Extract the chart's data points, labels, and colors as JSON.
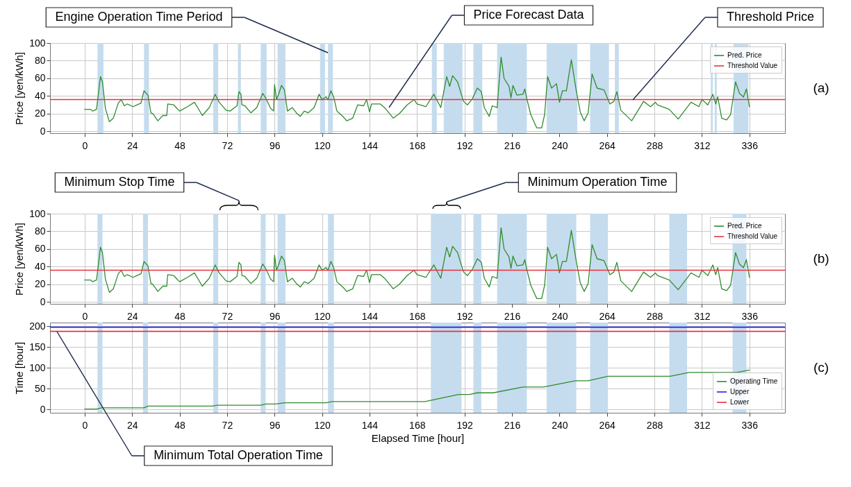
{
  "chart_data": [
    {
      "type": "line",
      "ylabel": "Price [yen/kWh]",
      "xlim": [
        -17.5,
        354
      ],
      "xticks": [
        0,
        24,
        48,
        72,
        96,
        120,
        144,
        168,
        192,
        216,
        240,
        264,
        288,
        312,
        336
      ],
      "ylim": [
        -2,
        100
      ],
      "yticks": [
        0,
        20,
        40,
        60,
        80,
        100
      ],
      "grid": true,
      "legend": "top right",
      "marker": "none",
      "line_style": "solid",
      "x": [
        0,
        3,
        4,
        6,
        8,
        9,
        10.5,
        12.5,
        14.5,
        17,
        18.5,
        20,
        21.5,
        24.5,
        26.5,
        28.5,
        30,
        32,
        33.5,
        34.5,
        37,
        39.5,
        41.5,
        42,
        45,
        48,
        52,
        55.5,
        59.5,
        63,
        66,
        68,
        71.5,
        73.5,
        77,
        78,
        79,
        79.5,
        81,
        84,
        87,
        90,
        91.5,
        94,
        95.5,
        96,
        97,
        98,
        99.5,
        101,
        102.5,
        105,
        107,
        109,
        111,
        113,
        116,
        118.5,
        120,
        122,
        123,
        124.5,
        126,
        127.5,
        129,
        130.5,
        132.5,
        135.5,
        138,
        141,
        142.5,
        144,
        145,
        149.5,
        152,
        156,
        159,
        163,
        166.5,
        168,
        171,
        172.5,
        176.5,
        180,
        183,
        184.5,
        186,
        188.5,
        191.5,
        193.5,
        196,
        198.5,
        200.5,
        202,
        204.5,
        206,
        208.5,
        210.5,
        212,
        214.5,
        215.5,
        216.5,
        218.5,
        221.5,
        222.5,
        223.5,
        225.5,
        228.5,
        231,
        232.5,
        234,
        236,
        238.5,
        240,
        241.5,
        243.5,
        246,
        248.5,
        250.5,
        252.5,
        254.5,
        256.5,
        259,
        262.5,
        265.5,
        267.5,
        269,
        271,
        276.5,
        282.5,
        286,
        288.5,
        289.5,
        295.5,
        300,
        306.5,
        310.5,
        312,
        315,
        317.5,
        319,
        320,
        322,
        324.5,
        326.5,
        329,
        331,
        333,
        334.5,
        336
      ],
      "series": [
        {
          "name": "Pred. Price",
          "color": "#2e8b2e",
          "values": [
            25,
            25,
            23,
            25,
            62,
            56,
            26,
            11,
            15,
            32,
            36,
            29,
            31,
            28,
            30,
            32,
            46,
            41,
            21,
            20,
            12,
            18,
            18,
            31,
            30,
            23,
            28,
            33,
            18,
            27,
            42,
            33,
            24,
            23,
            29,
            45,
            42,
            30,
            29,
            21,
            27,
            43,
            38,
            26,
            23,
            53,
            36,
            42,
            52,
            47,
            23,
            27,
            21,
            17,
            23,
            21,
            27,
            42,
            36,
            39,
            36,
            46,
            38,
            23,
            20,
            17,
            12,
            15,
            30,
            29,
            36,
            22,
            31,
            31,
            26,
            15,
            20,
            30,
            36,
            31,
            29,
            28,
            42,
            27,
            62,
            51,
            63,
            56,
            34,
            30,
            37,
            49,
            45,
            27,
            17,
            29,
            27,
            84,
            60,
            51,
            38,
            52,
            41,
            42,
            48,
            37,
            19,
            4,
            4,
            19,
            62,
            49,
            54,
            33,
            46,
            46,
            81,
            46,
            22,
            12,
            21,
            65,
            49,
            47,
            31,
            34,
            45,
            24,
            12,
            34,
            28,
            33,
            30,
            25,
            14,
            33,
            28,
            36,
            30,
            42,
            31,
            39,
            15,
            13,
            19,
            56,
            43,
            39,
            48,
            28
          ]
        }
      ],
      "ref_lines": [
        {
          "axis": "y",
          "value": 36,
          "label": "Threshold Value",
          "color": "#e8313c"
        }
      ],
      "bands": [
        {
          "axis": "x",
          "from": 6.5,
          "to": 9.5,
          "color": "#c5dcee"
        },
        {
          "axis": "x",
          "from": 30,
          "to": 32.5,
          "color": "#c5dcee"
        },
        {
          "axis": "x",
          "from": 65,
          "to": 67.5,
          "color": "#c5dcee"
        },
        {
          "axis": "x",
          "from": 77.5,
          "to": 79,
          "color": "#c5dcee"
        },
        {
          "axis": "x",
          "from": 89,
          "to": 92,
          "color": "#c5dcee"
        },
        {
          "axis": "x",
          "from": 97.5,
          "to": 101.5,
          "color": "#c5dcee"
        },
        {
          "axis": "x",
          "from": 119,
          "to": 121.5,
          "color": "#c5dcee"
        },
        {
          "axis": "x",
          "from": 123,
          "to": 125.5,
          "color": "#c5dcee"
        },
        {
          "axis": "x",
          "from": 175.5,
          "to": 178,
          "color": "#c5dcee"
        },
        {
          "axis": "x",
          "from": 181.5,
          "to": 191,
          "color": "#c5dcee"
        },
        {
          "axis": "x",
          "from": 196.5,
          "to": 201,
          "color": "#c5dcee"
        },
        {
          "axis": "x",
          "from": 208.5,
          "to": 223.5,
          "color": "#c5dcee"
        },
        {
          "axis": "x",
          "from": 233.5,
          "to": 249,
          "color": "#c5dcee"
        },
        {
          "axis": "x",
          "from": 255.5,
          "to": 265,
          "color": "#c5dcee"
        },
        {
          "axis": "x",
          "from": 268,
          "to": 270,
          "color": "#c5dcee"
        },
        {
          "axis": "x",
          "from": 316.5,
          "to": 317.5,
          "color": "#c5dcee"
        },
        {
          "axis": "x",
          "from": 318.5,
          "to": 319.5,
          "color": "#c5dcee"
        },
        {
          "axis": "x",
          "from": 328,
          "to": 335.5,
          "color": "#c5dcee"
        }
      ],
      "annotations": [
        "Engine Operation Time Period",
        "Price Forecast Data",
        "Threshold Price",
        "(a)"
      ]
    },
    {
      "type": "line",
      "ylabel": "Price [yen/kWh]",
      "xlim": [
        -17.5,
        354
      ],
      "xticks": [
        0,
        24,
        48,
        72,
        96,
        120,
        144,
        168,
        192,
        216,
        240,
        264,
        288,
        312,
        336
      ],
      "ylim": [
        -2,
        100
      ],
      "yticks": [
        0,
        20,
        40,
        60,
        80,
        100
      ],
      "grid": true,
      "legend": "top right",
      "marker": "none",
      "line_style": "solid",
      "x": [
        0,
        3,
        4,
        6,
        8,
        9,
        10.5,
        12.5,
        14.5,
        17,
        18.5,
        20,
        21.5,
        24.5,
        26.5,
        28.5,
        30,
        32,
        33.5,
        34.5,
        37,
        39.5,
        41.5,
        42,
        45,
        48,
        52,
        55.5,
        59.5,
        63,
        66,
        68,
        71.5,
        73.5,
        77,
        78,
        79,
        79.5,
        81,
        84,
        87,
        90,
        91.5,
        94,
        95.5,
        96,
        97,
        98,
        99.5,
        101,
        102.5,
        105,
        107,
        109,
        111,
        113,
        116,
        118.5,
        120,
        122,
        123,
        124.5,
        126,
        127.5,
        129,
        130.5,
        132.5,
        135.5,
        138,
        141,
        142.5,
        144,
        145,
        149.5,
        152,
        156,
        159,
        163,
        166.5,
        168,
        171,
        172.5,
        176.5,
        180,
        183,
        184.5,
        186,
        188.5,
        191.5,
        193.5,
        196,
        198.5,
        200.5,
        202,
        204.5,
        206,
        208.5,
        210.5,
        212,
        214.5,
        215.5,
        216.5,
        218.5,
        221.5,
        222.5,
        223.5,
        225.5,
        228.5,
        231,
        232.5,
        234,
        236,
        238.5,
        240,
        241.5,
        243.5,
        246,
        248.5,
        250.5,
        252.5,
        254.5,
        256.5,
        259,
        262.5,
        265.5,
        267.5,
        269,
        271,
        276.5,
        282.5,
        286,
        288.5,
        289.5,
        295.5,
        300,
        306.5,
        310.5,
        312,
        315,
        317.5,
        319,
        320,
        322,
        324.5,
        326.5,
        329,
        331,
        333,
        334.5,
        336
      ],
      "series": [
        {
          "name": "Pred. Price",
          "color": "#2e8b2e",
          "values": [
            25,
            25,
            23,
            25,
            62,
            56,
            26,
            11,
            15,
            32,
            36,
            29,
            31,
            28,
            30,
            32,
            46,
            41,
            21,
            20,
            12,
            18,
            18,
            31,
            30,
            23,
            28,
            33,
            18,
            27,
            42,
            33,
            24,
            23,
            29,
            45,
            42,
            30,
            29,
            21,
            27,
            43,
            38,
            26,
            23,
            53,
            36,
            42,
            52,
            47,
            23,
            27,
            21,
            17,
            23,
            21,
            27,
            42,
            36,
            39,
            36,
            46,
            38,
            23,
            20,
            17,
            12,
            15,
            30,
            29,
            36,
            22,
            31,
            31,
            26,
            15,
            20,
            30,
            36,
            31,
            29,
            28,
            42,
            27,
            62,
            51,
            63,
            56,
            34,
            30,
            37,
            49,
            45,
            27,
            17,
            29,
            27,
            84,
            60,
            51,
            38,
            52,
            41,
            42,
            48,
            37,
            19,
            4,
            4,
            19,
            62,
            49,
            54,
            33,
            46,
            46,
            81,
            46,
            22,
            12,
            21,
            65,
            49,
            47,
            31,
            34,
            45,
            24,
            12,
            34,
            28,
            33,
            30,
            25,
            14,
            33,
            28,
            36,
            30,
            42,
            31,
            39,
            15,
            13,
            19,
            56,
            43,
            39,
            48,
            28
          ]
        }
      ],
      "ref_lines": [
        {
          "axis": "y",
          "value": 36,
          "label": "Threshold Value",
          "color": "#e8313c"
        }
      ],
      "bands": [
        {
          "axis": "x",
          "from": 6.5,
          "to": 9,
          "color": "#c5dcee"
        },
        {
          "axis": "x",
          "from": 29.5,
          "to": 32,
          "color": "#c5dcee"
        },
        {
          "axis": "x",
          "from": 65,
          "to": 67.5,
          "color": "#c5dcee"
        },
        {
          "axis": "x",
          "from": 89,
          "to": 91.5,
          "color": "#c5dcee"
        },
        {
          "axis": "x",
          "from": 97.5,
          "to": 101.5,
          "color": "#c5dcee"
        },
        {
          "axis": "x",
          "from": 123,
          "to": 126,
          "color": "#c5dcee"
        },
        {
          "axis": "x",
          "from": 175,
          "to": 190.5,
          "color": "#c5dcee"
        },
        {
          "axis": "x",
          "from": 196.5,
          "to": 200.5,
          "color": "#c5dcee"
        },
        {
          "axis": "x",
          "from": 208.5,
          "to": 223.5,
          "color": "#c5dcee"
        },
        {
          "axis": "x",
          "from": 233.5,
          "to": 248.5,
          "color": "#c5dcee"
        },
        {
          "axis": "x",
          "from": 255.5,
          "to": 264.5,
          "color": "#c5dcee"
        },
        {
          "axis": "x",
          "from": 295.5,
          "to": 304.5,
          "color": "#c5dcee"
        },
        {
          "axis": "x",
          "from": 327.5,
          "to": 334.5,
          "color": "#c5dcee"
        }
      ],
      "annotations": [
        "Minimum Stop Time",
        "Minimum Operation Time",
        "(b)"
      ]
    },
    {
      "type": "line",
      "xlabel": "Elapsed Time [hour]",
      "ylabel": "Time [hour]",
      "xlim": [
        -17.5,
        354
      ],
      "xticks": [
        0,
        24,
        48,
        72,
        96,
        120,
        144,
        168,
        192,
        216,
        240,
        264,
        288,
        312,
        336
      ],
      "ylim": [
        -8,
        209
      ],
      "yticks": [
        0,
        50,
        100,
        150,
        200
      ],
      "grid": true,
      "legend": "bottom right",
      "marker": "none",
      "line_style": "solid",
      "x": [
        0,
        6,
        8.5,
        30,
        32,
        64.5,
        67,
        89,
        91.5,
        96.5,
        101,
        122,
        125,
        172,
        189,
        194.5,
        198.5,
        206.5,
        221.5,
        232,
        248,
        254.5,
        264.5,
        296,
        305.5,
        329.5,
        336
      ],
      "series": [
        {
          "name": "Operating Time",
          "color": "#2e8b2e",
          "values": [
            1,
            1,
            4,
            4,
            8,
            8,
            10,
            10,
            13,
            13,
            16,
            16,
            19,
            19,
            36,
            36,
            40,
            40,
            54,
            54,
            69,
            69,
            80,
            80,
            89,
            89,
            95
          ]
        }
      ],
      "ref_lines": [
        {
          "axis": "y",
          "value": 198,
          "label": "Upper",
          "color": "#2020e0"
        },
        {
          "axis": "y",
          "value": 188,
          "label": "Lower",
          "color": "#e8313c"
        }
      ],
      "bands": [
        {
          "axis": "x",
          "from": 6.5,
          "to": 9,
          "color": "#c5dcee"
        },
        {
          "axis": "x",
          "from": 29.5,
          "to": 32,
          "color": "#c5dcee"
        },
        {
          "axis": "x",
          "from": 65,
          "to": 67.5,
          "color": "#c5dcee"
        },
        {
          "axis": "x",
          "from": 89,
          "to": 91.5,
          "color": "#c5dcee"
        },
        {
          "axis": "x",
          "from": 97.5,
          "to": 101.5,
          "color": "#c5dcee"
        },
        {
          "axis": "x",
          "from": 123,
          "to": 126,
          "color": "#c5dcee"
        },
        {
          "axis": "x",
          "from": 175,
          "to": 190.5,
          "color": "#c5dcee"
        },
        {
          "axis": "x",
          "from": 196.5,
          "to": 200.5,
          "color": "#c5dcee"
        },
        {
          "axis": "x",
          "from": 208.5,
          "to": 223.5,
          "color": "#c5dcee"
        },
        {
          "axis": "x",
          "from": 233.5,
          "to": 248.5,
          "color": "#c5dcee"
        },
        {
          "axis": "x",
          "from": 255.5,
          "to": 264.5,
          "color": "#c5dcee"
        },
        {
          "axis": "x",
          "from": 295.5,
          "to": 304.5,
          "color": "#c5dcee"
        },
        {
          "axis": "x",
          "from": 327.5,
          "to": 334.5,
          "color": "#c5dcee"
        }
      ],
      "annotations": [
        "Minimum Total Operation Time",
        "(c)"
      ]
    }
  ]
}
